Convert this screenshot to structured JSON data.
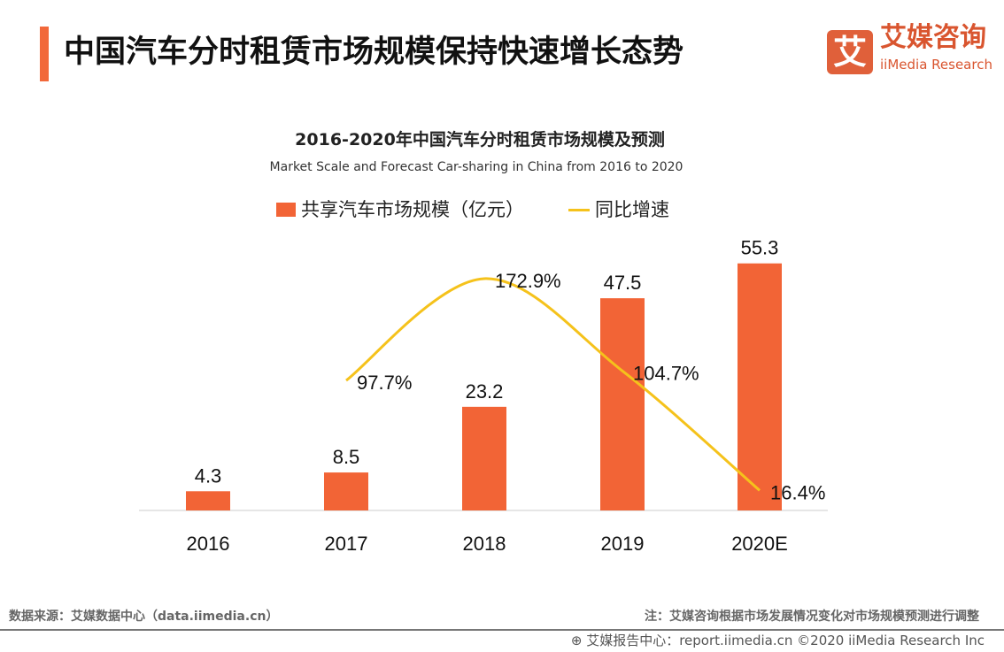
{
  "header": {
    "title": "中国汽车分时租赁市场规模保持快速增长态势",
    "logo_icon": "艾",
    "logo_cn": "艾媒咨询",
    "logo_en": "iiMedia Research"
  },
  "chart_data": {
    "type": "bar",
    "title": "2016-2020年中国汽车分时租赁市场规模及预测",
    "subtitle": "Market Scale and Forecast Car-sharing in China from 2016 to 2020",
    "categories": [
      "2016",
      "2017",
      "2018",
      "2019",
      "2020E"
    ],
    "series": [
      {
        "name": "共享汽车市场规模（亿元）",
        "type": "bar",
        "color": "#f26436",
        "values": [
          4.3,
          8.5,
          23.2,
          47.5,
          55.3
        ],
        "labels": [
          "4.3",
          "8.5",
          "23.2",
          "47.5",
          "55.3"
        ]
      },
      {
        "name": "同比增速",
        "type": "line",
        "color": "#f5c21b",
        "values": [
          null,
          97.7,
          172.9,
          104.7,
          16.4
        ],
        "labels": [
          "",
          "97.7%",
          "172.9%",
          "104.7%",
          "16.4%"
        ]
      }
    ],
    "legend": "top"
  },
  "footer": {
    "source": "数据来源：艾媒数据中心（data.iimedia.cn）",
    "note": "注：艾媒咨询根据市场发展情况变化对市场规模预测进行调整",
    "report": "艾媒报告中心：report.iimedia.cn ©2020  iiMedia Research  Inc"
  }
}
